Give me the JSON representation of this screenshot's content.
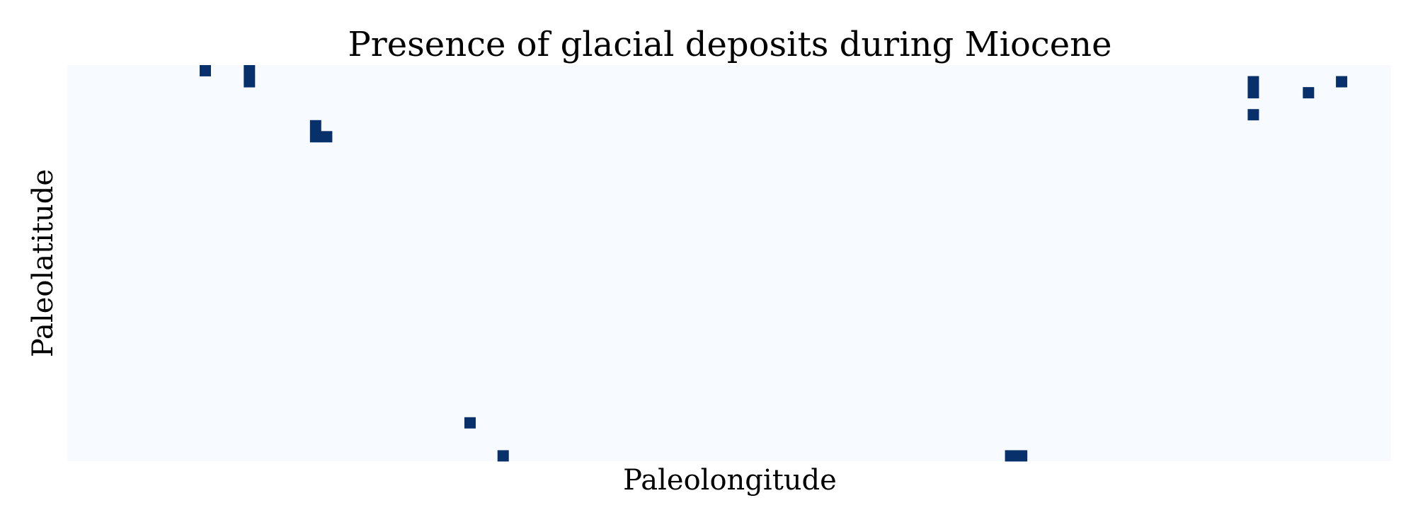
{
  "chart_data": {
    "type": "heatmap",
    "title": "Presence of glacial deposits during Miocene",
    "xlabel": "Paleolongitude",
    "ylabel": "Paleolatitude",
    "grid_columns": 120,
    "grid_rows": 36,
    "value_range": [
      0,
      1
    ],
    "ticks": "none",
    "colorbar": "none",
    "colors": {
      "absent": "#f7fbff",
      "present": "#08306b"
    },
    "present_cells": [
      {
        "col": 12,
        "row": 0
      },
      {
        "col": 16,
        "row": 0
      },
      {
        "col": 16,
        "row": 1
      },
      {
        "col": 22,
        "row": 5
      },
      {
        "col": 22,
        "row": 6
      },
      {
        "col": 23,
        "row": 6
      },
      {
        "col": 36,
        "row": 32
      },
      {
        "col": 39,
        "row": 35
      },
      {
        "col": 85,
        "row": 35
      },
      {
        "col": 86,
        "row": 35
      },
      {
        "col": 107,
        "row": 1
      },
      {
        "col": 107,
        "row": 2
      },
      {
        "col": 107,
        "row": 4
      },
      {
        "col": 112,
        "row": 2
      },
      {
        "col": 115,
        "row": 1
      }
    ]
  }
}
